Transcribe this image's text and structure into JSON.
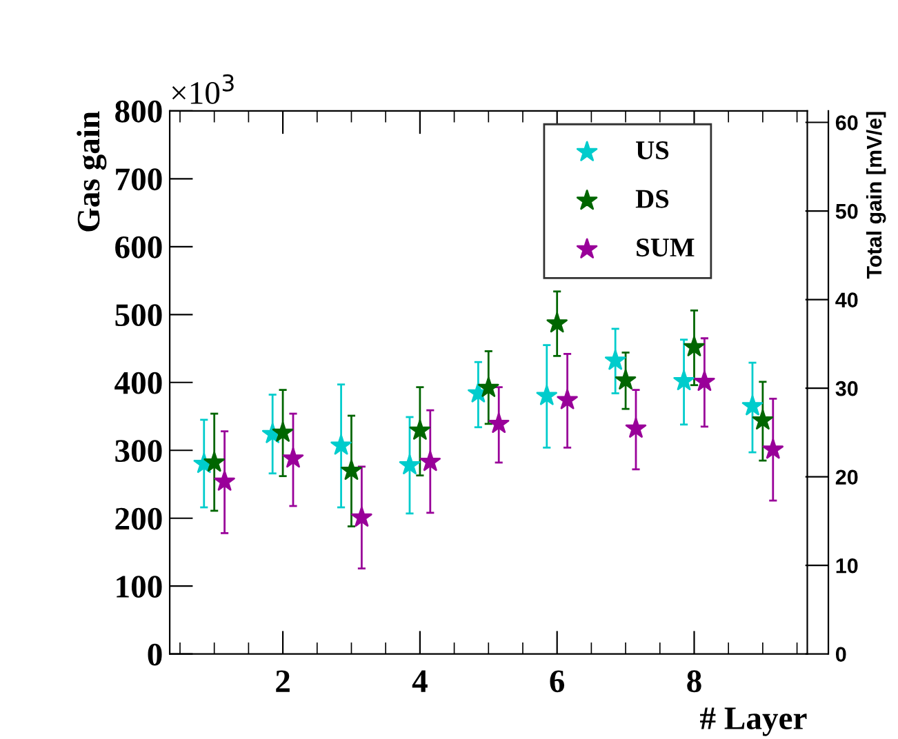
{
  "chart_data": {
    "type": "scatter",
    "xlabel": "# Layer",
    "ylabel": "Gas gain",
    "y2label": "Total gain [mV/e]",
    "annotations": [
      "×10$^{3}$"
    ],
    "xlim": [
      0.35,
      9.65
    ],
    "xticks": [
      2,
      4,
      6,
      8
    ],
    "ylim": [
      0,
      800
    ],
    "yticks": [
      0,
      100,
      200,
      300,
      400,
      500,
      600,
      700,
      800
    ],
    "y2lim": [
      0,
      61.3
    ],
    "y2ticks": [
      0,
      10,
      20,
      30,
      40,
      50,
      60
    ],
    "grid": false,
    "legend": "top right",
    "marker": "star",
    "line_style": "none",
    "series": [
      {
        "name": "US",
        "color": "#00cccc",
        "x": [
          0.85,
          1.85,
          2.85,
          3.85,
          4.85,
          5.85,
          6.85,
          7.85,
          8.85
        ],
        "values": [
          280,
          324,
          307,
          278,
          384,
          380,
          432,
          402,
          365
        ],
        "errors": [
          [
            216,
            345
          ],
          [
            266,
            382
          ],
          [
            216,
            397
          ],
          [
            207,
            349
          ],
          [
            334,
            430
          ],
          [
            304,
            455
          ],
          [
            384,
            479
          ],
          [
            338,
            463
          ],
          [
            297,
            429
          ]
        ]
      },
      {
        "name": "DS",
        "color": "#006600",
        "x": [
          1,
          2,
          3,
          4,
          5,
          6,
          7,
          8,
          9
        ],
        "values": [
          282,
          326,
          270,
          329,
          392,
          487,
          403,
          452,
          344
        ],
        "errors": [
          [
            211,
            354
          ],
          [
            262,
            389
          ],
          [
            188,
            351
          ],
          [
            263,
            393
          ],
          [
            339,
            446
          ],
          [
            439,
            534
          ],
          [
            361,
            444
          ],
          [
            396,
            506
          ],
          [
            285,
            401
          ]
        ]
      },
      {
        "name": "SUM",
        "color": "#990099",
        "x": [
          1.15,
          2.15,
          3.15,
          4.15,
          5.15,
          6.15,
          7.15,
          8.15,
          9.15
        ],
        "values": [
          254,
          288,
          201,
          283,
          339,
          374,
          332,
          401,
          301
        ],
        "errors": [
          [
            178,
            328
          ],
          [
            218,
            354
          ],
          [
            126,
            276
          ],
          [
            208,
            359
          ],
          [
            282,
            393
          ],
          [
            304,
            442
          ],
          [
            272,
            389
          ],
          [
            335,
            465
          ],
          [
            226,
            376
          ]
        ]
      }
    ]
  }
}
